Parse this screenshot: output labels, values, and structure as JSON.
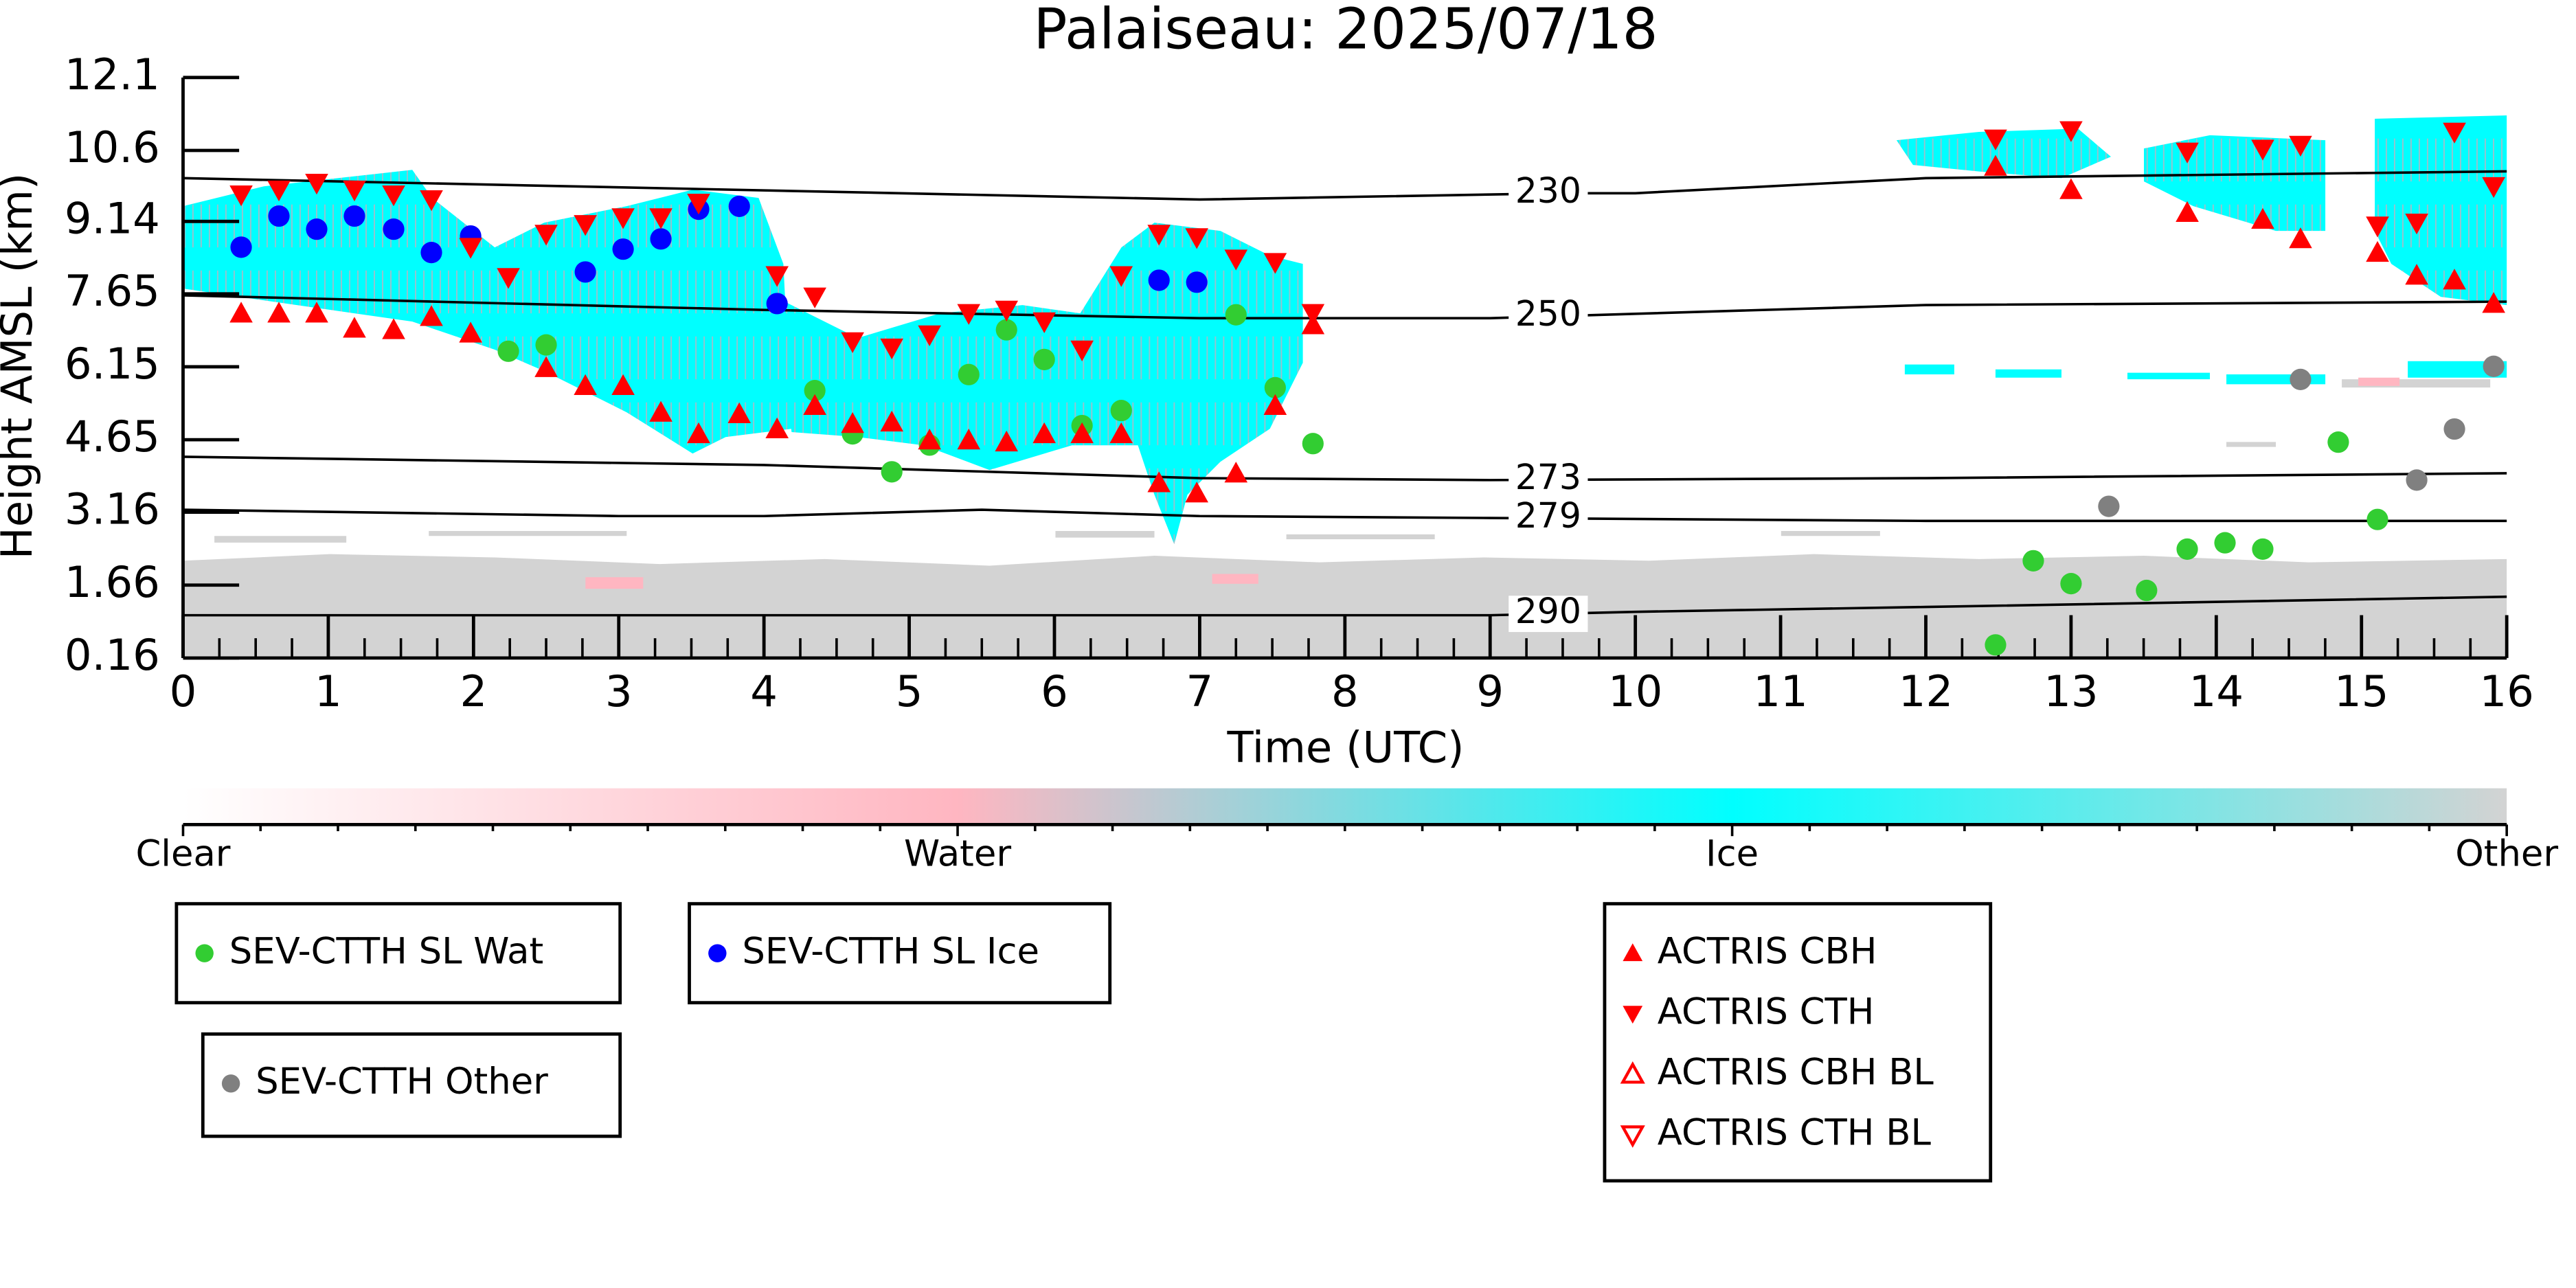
{
  "chart_data": {
    "type": "scatter",
    "title": "Palaiseau: 2025/07/18",
    "xlabel": "Time (UTC)",
    "ylabel": "Height AMSL (km)",
    "xlim": [
      0,
      16
    ],
    "xticks": [
      0,
      1,
      2,
      3,
      4,
      5,
      6,
      7,
      8,
      9,
      10,
      11,
      12,
      13,
      14,
      15,
      16
    ],
    "ylim": [
      0.16,
      12.1
    ],
    "yticks": [
      0.16,
      1.66,
      3.16,
      4.65,
      6.15,
      7.65,
      9.14,
      10.6,
      12.1
    ],
    "contours": [
      {
        "label": 230,
        "x": [
          0,
          7,
          9.5,
          10,
          12,
          16
        ],
        "y": [
          10.03,
          9.59,
          9.72,
          9.72,
          10.03,
          10.17
        ]
      },
      {
        "label": 250,
        "x": [
          0,
          4,
          7,
          9,
          12,
          16
        ],
        "y": [
          7.62,
          7.32,
          7.15,
          7.15,
          7.42,
          7.49
        ]
      },
      {
        "label": 273,
        "x": [
          0,
          4,
          7,
          9,
          12,
          16
        ],
        "y": [
          4.3,
          4.13,
          3.86,
          3.82,
          3.86,
          3.96
        ]
      },
      {
        "label": 279,
        "x": [
          0,
          3,
          4,
          5.5,
          7,
          9,
          12,
          16
        ],
        "y": [
          3.21,
          3.08,
          3.08,
          3.21,
          3.08,
          3.04,
          2.98,
          2.98
        ]
      },
      {
        "label": 290,
        "x": [
          0,
          9,
          10,
          12,
          16
        ],
        "y": [
          1.04,
          1.04,
          1.11,
          1.21,
          1.42
        ]
      }
    ],
    "colorbar": {
      "labels": [
        "Clear",
        "Water",
        "Ice",
        "Other"
      ],
      "colors": [
        "#ffffff",
        "#ffb6c1",
        "#00ffff",
        "#d3d3d3"
      ]
    },
    "series": [
      {
        "name": "SEV-CTTH SL Wat",
        "color": "#32cd32",
        "marker": "circle",
        "x": [
          2.24,
          2.5,
          4.35,
          4.61,
          4.88,
          5.14,
          5.41,
          5.67,
          5.93,
          6.19,
          6.46,
          7.25,
          7.52,
          7.78,
          12.48,
          12.74,
          13.0,
          13.52,
          13.8,
          14.06,
          14.32,
          14.84,
          15.11
        ],
        "y": [
          6.47,
          6.6,
          5.66,
          4.77,
          3.99,
          4.54,
          5.99,
          6.91,
          6.3,
          4.94,
          5.25,
          7.22,
          5.72,
          4.57,
          0.43,
          2.16,
          1.69,
          1.55,
          2.4,
          2.53,
          2.4,
          4.6,
          3.01
        ]
      },
      {
        "name": "SEV-CTTH SL Ice",
        "color": "#0000ff",
        "marker": "circle",
        "x": [
          0.4,
          0.66,
          0.92,
          1.18,
          1.45,
          1.71,
          1.98,
          2.77,
          3.03,
          3.29,
          3.55,
          3.83,
          4.09,
          6.72,
          6.98
        ],
        "y": [
          8.61,
          9.25,
          8.98,
          9.25,
          8.98,
          8.5,
          8.84,
          8.1,
          8.57,
          8.78,
          9.39,
          9.45,
          7.45,
          7.93,
          7.89
        ]
      },
      {
        "name": "SEV-CTTH Other",
        "color": "#808080",
        "marker": "circle",
        "x": [
          13.26,
          14.58,
          15.38,
          15.64,
          15.91
        ],
        "y": [
          3.28,
          5.89,
          3.82,
          4.87,
          6.16
        ]
      },
      {
        "name": "ACTRIS CBH",
        "color": "#ff0000",
        "marker": "triangle-up",
        "x": [
          0.4,
          0.66,
          0.92,
          1.18,
          1.45,
          1.71,
          1.98,
          2.5,
          2.77,
          3.03,
          3.29,
          3.55,
          3.83,
          4.09,
          4.35,
          4.61,
          4.88,
          5.14,
          5.41,
          5.67,
          5.93,
          6.19,
          6.46,
          6.72,
          6.98,
          7.25,
          7.52,
          7.78,
          12.48,
          13.0,
          13.8,
          14.32,
          14.58,
          15.11,
          15.38,
          15.64,
          15.91
        ],
        "y": [
          7.25,
          7.25,
          7.25,
          6.94,
          6.91,
          7.18,
          6.84,
          6.13,
          5.76,
          5.76,
          5.21,
          4.77,
          5.18,
          4.87,
          5.35,
          4.98,
          5.01,
          4.64,
          4.64,
          4.6,
          4.77,
          4.77,
          4.77,
          3.76,
          3.55,
          3.96,
          5.35,
          7.01,
          10.27,
          9.79,
          9.32,
          9.18,
          8.78,
          8.5,
          8.03,
          7.93,
          7.45
        ]
      },
      {
        "name": "ACTRIS CTH",
        "color": "#ff0000",
        "marker": "triangle-down",
        "x": [
          0.4,
          0.66,
          0.92,
          1.18,
          1.45,
          1.71,
          1.98,
          2.24,
          2.5,
          2.77,
          3.03,
          3.29,
          3.55,
          4.09,
          4.35,
          4.61,
          4.88,
          5.14,
          5.41,
          5.67,
          5.93,
          6.19,
          6.46,
          6.72,
          6.98,
          7.25,
          7.52,
          7.78,
          12.48,
          13.0,
          13.8,
          14.32,
          14.58,
          15.11,
          15.38,
          15.64,
          15.91
        ],
        "y": [
          9.69,
          9.79,
          9.93,
          9.79,
          9.69,
          9.59,
          8.61,
          7.99,
          8.88,
          9.08,
          9.22,
          9.22,
          9.52,
          8.03,
          7.59,
          6.67,
          6.54,
          6.81,
          7.25,
          7.32,
          7.08,
          6.5,
          8.03,
          8.88,
          8.81,
          8.37,
          8.3,
          7.25,
          10.84,
          11.01,
          10.57,
          10.63,
          10.71,
          9.05,
          9.11,
          10.98,
          9.86
        ]
      },
      {
        "name": "ACTRIS CBH BL",
        "color": "#ff0000",
        "marker": "triangle-up-open",
        "x": [],
        "y": []
      },
      {
        "name": "ACTRIS CTH BL",
        "color": "#ff0000",
        "marker": "triangle-down-open",
        "x": [],
        "y": []
      }
    ]
  }
}
